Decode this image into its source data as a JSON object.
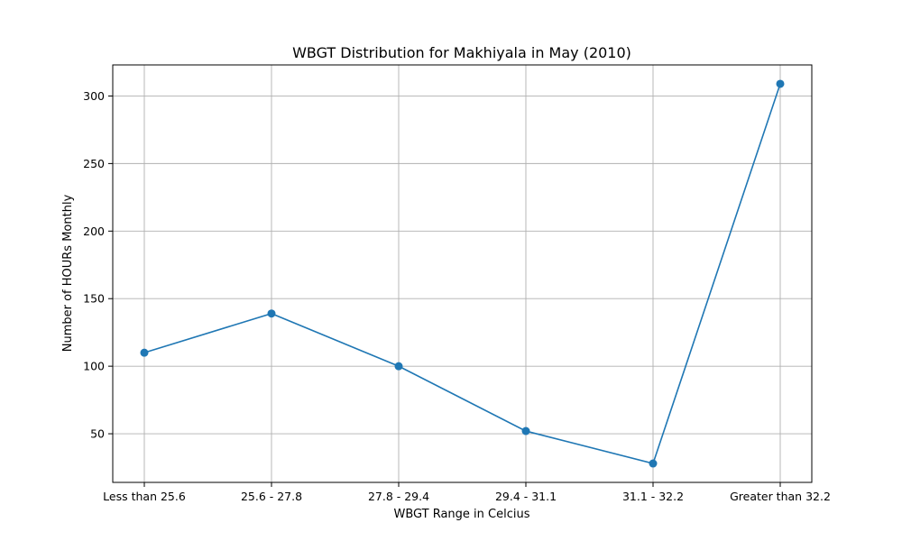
{
  "chart_data": {
    "type": "line",
    "title": "WBGT Distribution for Makhiyala in May (2010)",
    "xlabel": "WBGT Range in Celcius",
    "ylabel": "Number of HOURs Monthly",
    "categories": [
      "Less than 25.6",
      "25.6 - 27.8",
      "27.8 - 29.4",
      "29.4 - 31.1",
      "31.1 - 32.2",
      "Greater than 32.2"
    ],
    "series": [
      {
        "values": [
          110,
          139,
          100,
          52,
          28,
          309
        ],
        "color": "#1f77b4",
        "marker": "circle"
      }
    ],
    "ylim": [
      14,
      323
    ],
    "yticks": [
      50,
      100,
      150,
      200,
      250,
      300
    ],
    "grid": true
  }
}
